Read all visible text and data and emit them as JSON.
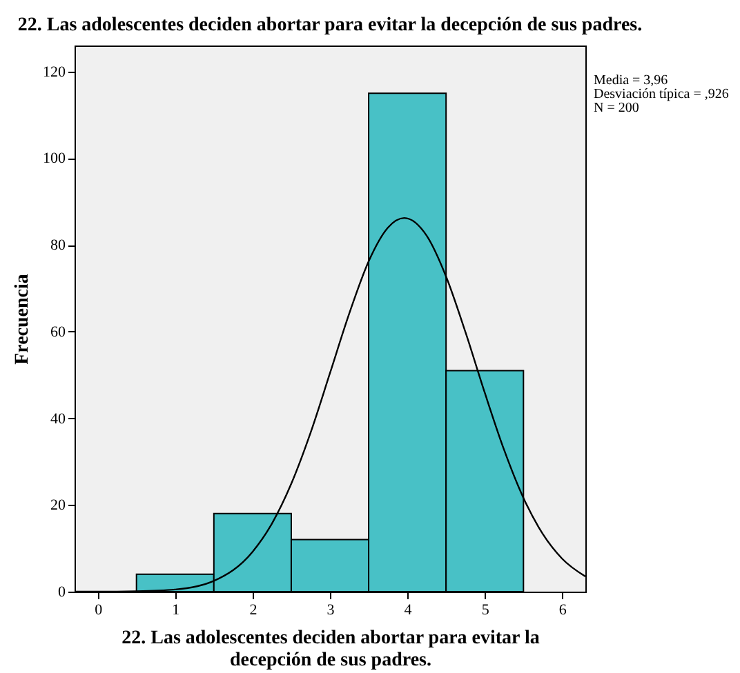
{
  "chart_data": {
    "type": "histogram",
    "title": "22. Las adolescentes deciden abortar para evitar la decepción de sus padres.",
    "xlabel": "22. Las adolescentes deciden abortar para evitar la\ndecepción de sus padres.",
    "ylabel": "Frecuencia",
    "annotations": [
      "Media = 3,96",
      "Desviación típica = ,926",
      "N = 200"
    ],
    "bins": [
      0.5,
      1.5,
      2.5,
      3.5,
      4.5,
      5.5
    ],
    "series": [
      {
        "color": "#48c1c6",
        "values": [
          4,
          18,
          12,
          115,
          51
        ]
      },
      {
        "type": "line",
        "color": "#000000",
        "x": [
          -0.3,
          0,
          0.5,
          1,
          1.5,
          2,
          2.25,
          2.5,
          2.75,
          3,
          3.25,
          3.5,
          3.75,
          3.96,
          4.25,
          4.5,
          4.75,
          5,
          5.25,
          5.5,
          5.75,
          6,
          6.3
        ],
        "values": [
          0,
          0,
          0.1,
          0.5,
          2.5,
          9.2,
          15.7,
          24.9,
          36.7,
          50.4,
          64.2,
          76.2,
          84,
          86.2,
          82.1,
          72.7,
          59.9,
          45.9,
          32.7,
          21.6,
          13.3,
          7.6,
          3.5
        ]
      }
    ],
    "xlim": [
      -0.3,
      6.3
    ],
    "xticks": [
      0,
      1,
      2,
      3,
      4,
      5,
      6
    ],
    "ylim": [
      0,
      126
    ],
    "yticks": [
      0,
      20,
      40,
      60,
      80,
      100,
      120
    ],
    "grid": false
  }
}
